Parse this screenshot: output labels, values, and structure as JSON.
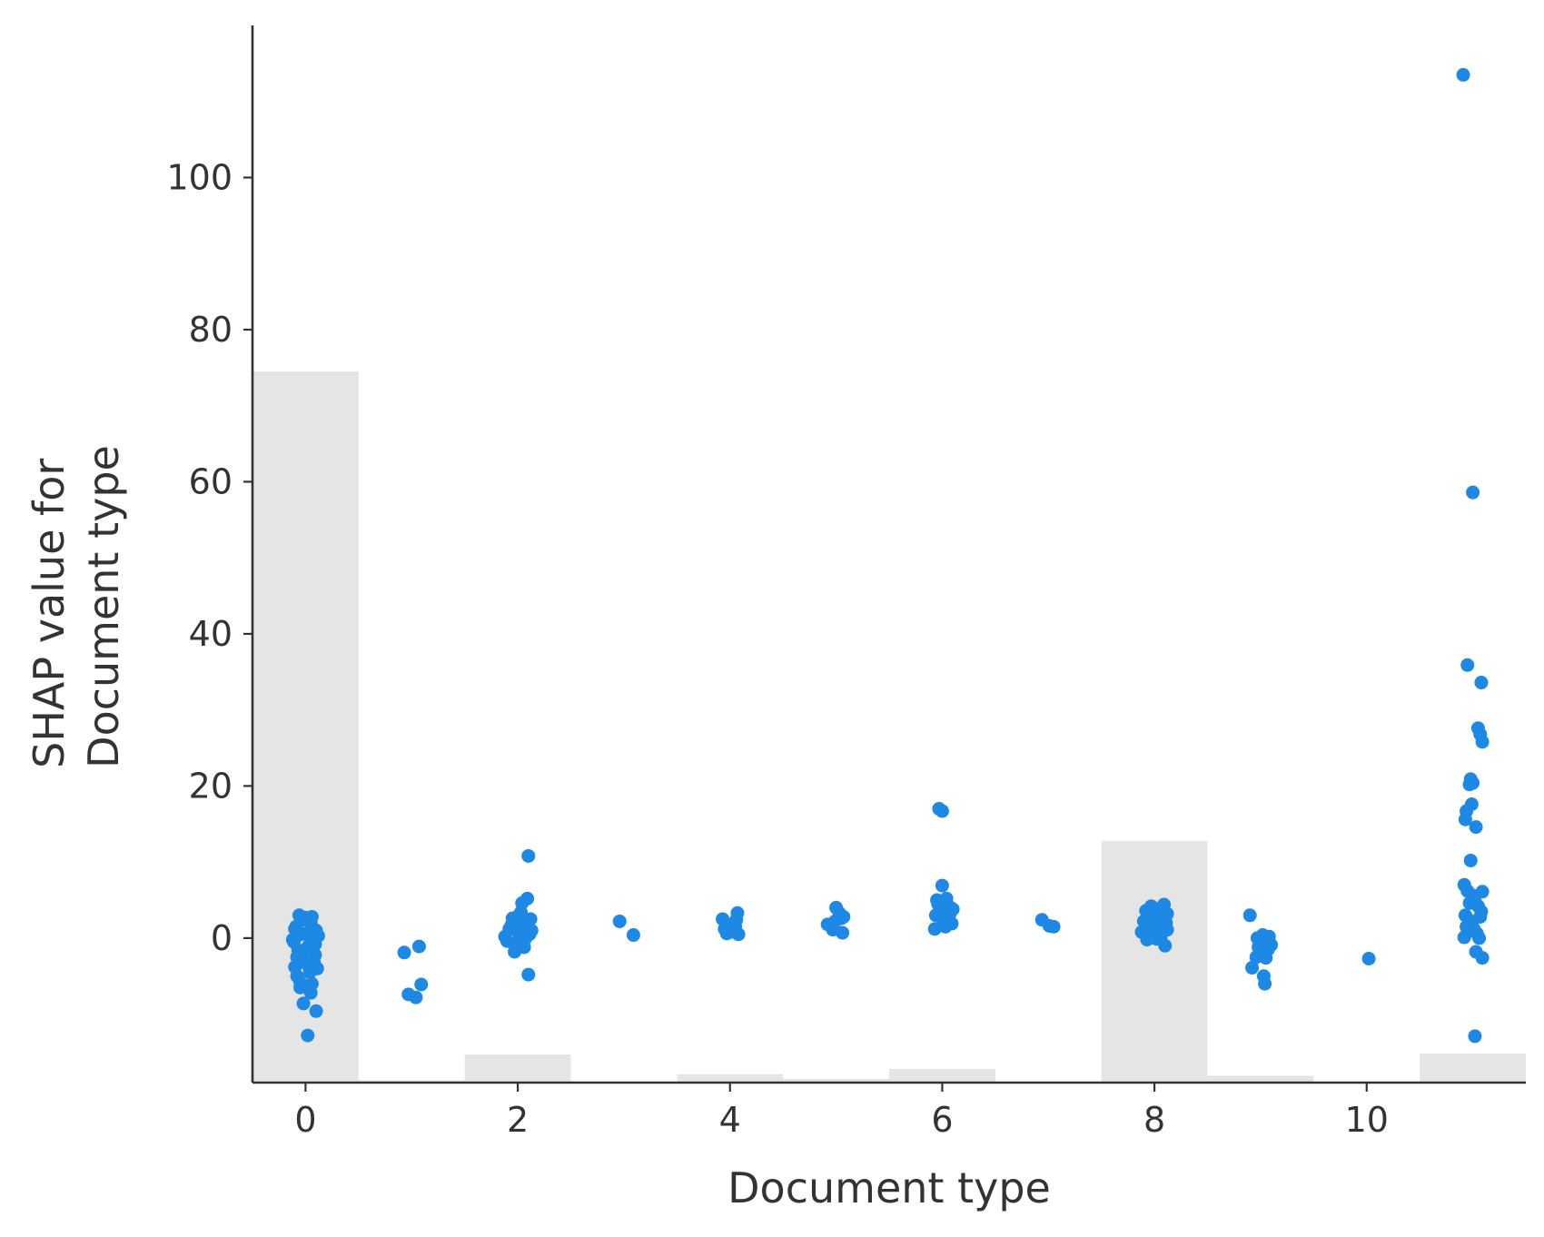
{
  "chart_data": {
    "type": "scatter",
    "title": "",
    "xlabel": "Document type",
    "ylabel_lines": [
      "SHAP value for",
      "Document type"
    ],
    "xlim": [
      -0.5,
      11.5
    ],
    "ylim": [
      -19,
      120
    ],
    "xticks": [
      0,
      2,
      4,
      6,
      8,
      10
    ],
    "yticks": [
      0,
      20,
      40,
      60,
      80,
      100
    ],
    "grid": false,
    "legend": "none",
    "point_color": "#1E88E5",
    "histogram_color": "#E5E5E5",
    "feature_distribution": [
      {
        "x": 0,
        "height": 93.5
      },
      {
        "x": 1,
        "height": 0.3
      },
      {
        "x": 2,
        "height": 3.7
      },
      {
        "x": 3,
        "height": 0
      },
      {
        "x": 4,
        "height": 1.1
      },
      {
        "x": 5,
        "height": 0.5
      },
      {
        "x": 6,
        "height": 1.8
      },
      {
        "x": 7,
        "height": 0
      },
      {
        "x": 8,
        "height": 31.8
      },
      {
        "x": 9,
        "height": 0.9
      },
      {
        "x": 10,
        "height": 0
      },
      {
        "x": 11,
        "height": 3.8
      }
    ],
    "points": [
      [
        0.02,
        -12.8
      ],
      [
        -0.02,
        -8.6
      ],
      [
        0.1,
        -9.6
      ],
      [
        -0.05,
        -6.5
      ],
      [
        0.06,
        -6.0
      ],
      [
        -0.08,
        -5.0
      ],
      [
        0.04,
        -4.5
      ],
      [
        -0.1,
        -3.8
      ],
      [
        0.08,
        -3.2
      ],
      [
        -0.03,
        -2.8
      ],
      [
        0.09,
        -2.2
      ],
      [
        -0.07,
        -1.6
      ],
      [
        0.03,
        -1.0
      ],
      [
        -0.11,
        -0.5
      ],
      [
        0.07,
        0.0
      ],
      [
        -0.04,
        0.5
      ],
      [
        0.1,
        1.0
      ],
      [
        -0.09,
        1.5
      ],
      [
        0.05,
        2.0
      ],
      [
        -0.02,
        2.4
      ],
      [
        0.0,
        2.7
      ],
      [
        -0.06,
        3.0
      ],
      [
        0.06,
        2.8
      ],
      [
        -0.12,
        -0.2
      ],
      [
        0.12,
        0.3
      ],
      [
        0.0,
        -1.5
      ],
      [
        0.02,
        -3.5
      ],
      [
        -0.05,
        -5.8
      ],
      [
        0.05,
        -7.2
      ],
      [
        0.11,
        -4.0
      ],
      [
        -0.1,
        1.2
      ],
      [
        0.09,
        -0.8
      ],
      [
        -0.08,
        -2.5
      ],
      [
        0.0,
        0.6
      ],
      [
        0.93,
        -1.9
      ],
      [
        1.07,
        -1.1
      ],
      [
        0.97,
        -7.4
      ],
      [
        1.04,
        -7.8
      ],
      [
        1.09,
        -6.1
      ],
      [
        1.88,
        0.2
      ],
      [
        1.92,
        1.2
      ],
      [
        1.95,
        2.6
      ],
      [
        1.97,
        -1.8
      ],
      [
        1.99,
        -0.6
      ],
      [
        2.0,
        0.8
      ],
      [
        2.02,
        2.0
      ],
      [
        2.03,
        3.4
      ],
      [
        2.04,
        4.6
      ],
      [
        2.05,
        0.2
      ],
      [
        2.06,
        -1.2
      ],
      [
        2.08,
        1.5
      ],
      [
        2.09,
        5.2
      ],
      [
        2.1,
        10.8
      ],
      [
        2.1,
        -4.8
      ],
      [
        2.12,
        2.5
      ],
      [
        2.13,
        1.0
      ],
      [
        1.9,
        -0.4
      ],
      [
        1.94,
        1.7
      ],
      [
        2.07,
        -0.1
      ],
      [
        2.01,
        3.0
      ],
      [
        2.11,
        0.5
      ],
      [
        2.96,
        2.2
      ],
      [
        3.09,
        0.4
      ],
      [
        3.93,
        2.5
      ],
      [
        3.95,
        1.2
      ],
      [
        3.97,
        0.6
      ],
      [
        4.0,
        1.8
      ],
      [
        4.02,
        1.0
      ],
      [
        4.04,
        0.8
      ],
      [
        4.06,
        2.4
      ],
      [
        4.07,
        3.3
      ],
      [
        4.08,
        0.5
      ],
      [
        4.05,
        1.5
      ],
      [
        3.99,
        0.9
      ],
      [
        4.92,
        1.8
      ],
      [
        4.97,
        1.1
      ],
      [
        5.0,
        4.0
      ],
      [
        5.03,
        3.3
      ],
      [
        5.05,
        2.6
      ],
      [
        5.07,
        2.8
      ],
      [
        5.06,
        0.7
      ],
      [
        4.99,
        2.2
      ],
      [
        5.93,
        1.2
      ],
      [
        5.94,
        3.0
      ],
      [
        5.95,
        5.0
      ],
      [
        5.97,
        17.0
      ],
      [
        5.99,
        3.6
      ],
      [
        6.0,
        16.7
      ],
      [
        6.0,
        6.9
      ],
      [
        6.01,
        2.3
      ],
      [
        6.02,
        4.4
      ],
      [
        6.04,
        5.2
      ],
      [
        6.05,
        2.0
      ],
      [
        6.07,
        3.1
      ],
      [
        6.08,
        4.0
      ],
      [
        6.09,
        1.9
      ],
      [
        6.1,
        3.8
      ],
      [
        5.96,
        4.5
      ],
      [
        6.03,
        1.5
      ],
      [
        6.94,
        2.4
      ],
      [
        7.01,
        1.6
      ],
      [
        7.05,
        1.5
      ],
      [
        7.88,
        0.8
      ],
      [
        7.9,
        2.2
      ],
      [
        7.92,
        3.6
      ],
      [
        7.93,
        -0.2
      ],
      [
        7.95,
        1.4
      ],
      [
        7.97,
        4.2
      ],
      [
        7.99,
        0.5
      ],
      [
        8.0,
        2.8
      ],
      [
        8.02,
        -0.1
      ],
      [
        8.03,
        1.9
      ],
      [
        8.05,
        3.9
      ],
      [
        8.06,
        0.2
      ],
      [
        8.08,
        2.4
      ],
      [
        8.09,
        4.4
      ],
      [
        8.1,
        -1.0
      ],
      [
        8.12,
        1.1
      ],
      [
        8.12,
        3.2
      ],
      [
        7.91,
        1.0
      ],
      [
        7.96,
        2.6
      ],
      [
        8.01,
        0.9
      ],
      [
        8.04,
        3.5
      ],
      [
        8.07,
        1.6
      ],
      [
        8.11,
        2.0
      ],
      [
        7.98,
        4.0
      ],
      [
        7.94,
        3.0
      ],
      [
        8.9,
        3.0
      ],
      [
        8.92,
        -3.9
      ],
      [
        8.96,
        -2.5
      ],
      [
        8.97,
        0.0
      ],
      [
        8.98,
        -1.2
      ],
      [
        9.0,
        -0.6
      ],
      [
        9.02,
        0.4
      ],
      [
        9.03,
        -5.0
      ],
      [
        9.04,
        -6.0
      ],
      [
        9.05,
        -2.6
      ],
      [
        9.07,
        -1.5
      ],
      [
        9.08,
        0.2
      ],
      [
        9.1,
        -0.9
      ],
      [
        9.01,
        -1.8
      ],
      [
        9.06,
        -0.2
      ],
      [
        10.02,
        -2.7
      ],
      [
        10.91,
        113.5
      ],
      [
        10.95,
        35.9
      ],
      [
        11.0,
        58.6
      ],
      [
        11.08,
        33.6
      ],
      [
        11.05,
        27.6
      ],
      [
        11.07,
        26.8
      ],
      [
        11.09,
        25.8
      ],
      [
        10.98,
        20.9
      ],
      [
        11.0,
        20.4
      ],
      [
        10.97,
        20.2
      ],
      [
        10.99,
        17.6
      ],
      [
        10.94,
        16.7
      ],
      [
        10.93,
        15.6
      ],
      [
        11.03,
        14.6
      ],
      [
        10.98,
        10.2
      ],
      [
        10.92,
        7.0
      ],
      [
        10.95,
        6.2
      ],
      [
        11.0,
        5.6
      ],
      [
        11.02,
        4.9
      ],
      [
        11.05,
        4.2
      ],
      [
        11.09,
        6.1
      ],
      [
        11.08,
        3.5
      ],
      [
        10.93,
        3.0
      ],
      [
        10.96,
        2.4
      ],
      [
        10.99,
        1.8
      ],
      [
        11.01,
        1.2
      ],
      [
        11.04,
        0.6
      ],
      [
        11.06,
        0.0
      ],
      [
        10.92,
        0.1
      ],
      [
        11.03,
        -1.8
      ],
      [
        11.09,
        -2.6
      ],
      [
        11.02,
        -12.9
      ],
      [
        10.97,
        4.6
      ],
      [
        11.07,
        2.8
      ],
      [
        10.94,
        1.5
      ]
    ]
  }
}
